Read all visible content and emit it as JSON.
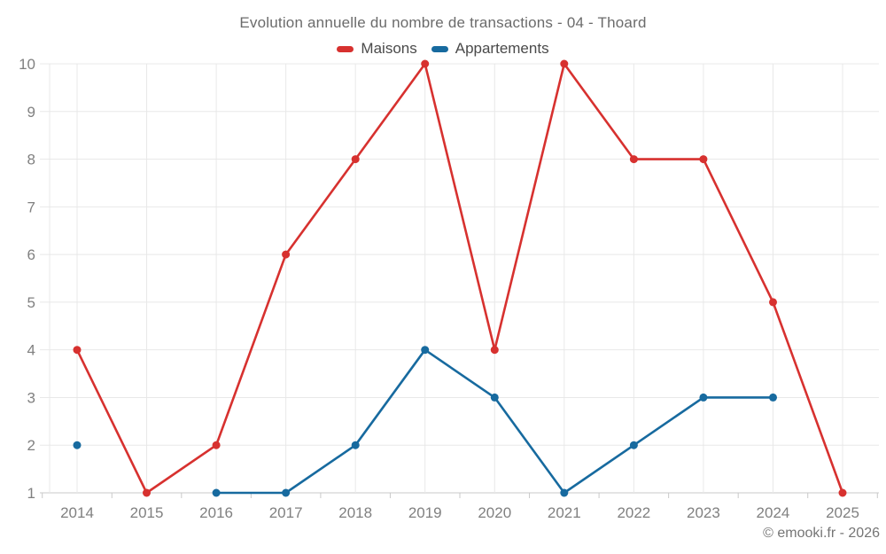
{
  "title": "Evolution annuelle du nombre de transactions - 04 - Thoard",
  "legend": [
    {
      "label": "Maisons",
      "color": "#d7312f"
    },
    {
      "label": "Appartements",
      "color": "#176a9f"
    }
  ],
  "footer": {
    "copyright": "© emooki.fr - 2026"
  },
  "colors": {
    "maisons": "#d7312f",
    "appartements": "#176a9f",
    "grid": "#e8e8e8",
    "axis": "#c9c9c9",
    "tick_label": "#808080"
  },
  "chart_data": {
    "type": "line",
    "title": "Evolution annuelle du nombre de transactions - 04 - Thoard",
    "categories": [
      "2014",
      "2015",
      "2016",
      "2017",
      "2018",
      "2019",
      "2020",
      "2021",
      "2022",
      "2023",
      "2024",
      "2025"
    ],
    "series": [
      {
        "name": "Maisons",
        "color": "#d7312f",
        "values": [
          4,
          1,
          2,
          6,
          8,
          10,
          4,
          10,
          8,
          8,
          5,
          1
        ]
      },
      {
        "name": "Appartements",
        "color": "#176a9f",
        "values": [
          2,
          null,
          1,
          1,
          2,
          4,
          3,
          1,
          2,
          3,
          3,
          null
        ]
      }
    ],
    "xlabel": "",
    "ylabel": "",
    "ylim": [
      1,
      10
    ],
    "y_ticks": [
      1,
      2,
      3,
      4,
      5,
      6,
      7,
      8,
      9,
      10
    ],
    "grid": true,
    "legend_position": "top",
    "markers": true
  }
}
